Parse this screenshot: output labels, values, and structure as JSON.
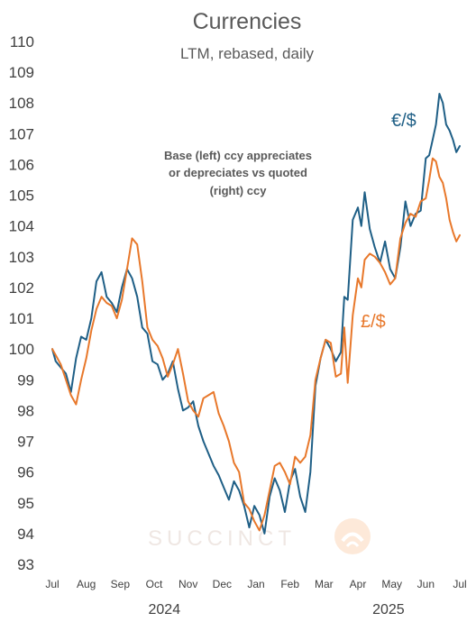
{
  "chart_data": {
    "type": "line",
    "title": "Currencies",
    "subtitle": "LTM, rebased, daily",
    "annotation": [
      "Base (left) ccy appreciates",
      "or depreciates vs quoted",
      "(right) ccy"
    ],
    "watermark": "SUCCINCT",
    "y_ticks": [
      93,
      94,
      95,
      96,
      97,
      98,
      99,
      100,
      101,
      102,
      103,
      104,
      105,
      106,
      107,
      108,
      109,
      110
    ],
    "ylim": [
      93,
      110
    ],
    "x_ticks": [
      "Jul",
      "Aug",
      "Sep",
      "Oct",
      "Nov",
      "Dec",
      "Jan",
      "Feb",
      "Mar",
      "Apr",
      "May",
      "Jun",
      "Jul"
    ],
    "xlim": [
      0,
      12
    ],
    "year_labels": [
      {
        "label": "2024",
        "x": 3.3
      },
      {
        "label": "2025",
        "x": 9.9
      }
    ],
    "grid": false,
    "legend": "inline labels",
    "series": [
      {
        "name": "€/$",
        "color": "#1f5f86",
        "x": [
          0,
          0.1,
          0.25,
          0.4,
          0.55,
          0.7,
          0.85,
          1.0,
          1.15,
          1.3,
          1.45,
          1.6,
          1.75,
          1.9,
          2.05,
          2.2,
          2.35,
          2.5,
          2.65,
          2.8,
          2.95,
          3.1,
          3.25,
          3.4,
          3.55,
          3.7,
          3.85,
          4.0,
          4.15,
          4.3,
          4.45,
          4.6,
          4.75,
          4.9,
          5.05,
          5.2,
          5.35,
          5.5,
          5.65,
          5.8,
          5.95,
          6.1,
          6.25,
          6.4,
          6.55,
          6.7,
          6.85,
          7.0,
          7.15,
          7.3,
          7.45,
          7.6,
          7.75,
          7.9,
          8.05,
          8.2,
          8.35,
          8.5,
          8.6,
          8.7,
          8.85,
          9.0,
          9.1,
          9.2,
          9.35,
          9.5,
          9.65,
          9.8,
          9.95,
          10.1,
          10.25,
          10.4,
          10.55,
          10.7,
          10.85,
          11.0,
          11.1,
          11.2,
          11.3,
          11.4,
          11.5,
          11.6,
          11.7,
          11.8,
          11.9,
          12.0
        ],
        "y": [
          100.0,
          99.6,
          99.4,
          99.2,
          98.6,
          99.7,
          100.4,
          100.3,
          101.0,
          102.2,
          102.5,
          101.7,
          101.5,
          101.2,
          102.0,
          102.6,
          102.3,
          101.7,
          100.7,
          100.5,
          99.6,
          99.5,
          99.0,
          99.2,
          99.6,
          98.7,
          98.0,
          98.1,
          98.3,
          97.5,
          97.0,
          96.6,
          96.2,
          95.9,
          95.5,
          95.1,
          95.7,
          95.4,
          94.9,
          94.2,
          94.9,
          94.6,
          94.0,
          95.2,
          95.8,
          95.4,
          94.7,
          95.7,
          96.1,
          95.2,
          94.7,
          96.0,
          98.8,
          99.7,
          100.3,
          100.0,
          99.6,
          99.9,
          101.7,
          101.6,
          104.2,
          104.6,
          104.0,
          105.1,
          103.9,
          103.3,
          102.8,
          103.5,
          102.6,
          102.3,
          103.3,
          104.8,
          104.0,
          104.4,
          104.5,
          106.2,
          106.3,
          106.8,
          107.3,
          108.3,
          108.0,
          107.3,
          107.1,
          106.8,
          106.4,
          106.6
        ]
      },
      {
        "name": "£/$",
        "color": "#e8782b",
        "x": [
          0,
          0.1,
          0.25,
          0.4,
          0.55,
          0.7,
          0.85,
          1.0,
          1.15,
          1.3,
          1.45,
          1.6,
          1.75,
          1.9,
          2.05,
          2.2,
          2.35,
          2.5,
          2.65,
          2.8,
          2.95,
          3.1,
          3.25,
          3.4,
          3.55,
          3.7,
          3.85,
          4.0,
          4.15,
          4.3,
          4.45,
          4.6,
          4.75,
          4.9,
          5.05,
          5.2,
          5.35,
          5.5,
          5.65,
          5.8,
          5.95,
          6.1,
          6.25,
          6.4,
          6.55,
          6.7,
          6.85,
          7.0,
          7.15,
          7.3,
          7.45,
          7.6,
          7.75,
          7.9,
          8.05,
          8.2,
          8.35,
          8.5,
          8.6,
          8.7,
          8.85,
          9.0,
          9.1,
          9.2,
          9.35,
          9.5,
          9.65,
          9.8,
          9.95,
          10.1,
          10.25,
          10.4,
          10.55,
          10.7,
          10.85,
          11.0,
          11.1,
          11.2,
          11.3,
          11.4,
          11.5,
          11.6,
          11.7,
          11.8,
          11.9,
          12.0
        ],
        "y": [
          100.0,
          99.8,
          99.5,
          99.0,
          98.5,
          98.2,
          99.0,
          99.7,
          100.6,
          101.3,
          101.7,
          101.5,
          101.4,
          101.0,
          101.6,
          102.6,
          103.6,
          103.4,
          102.2,
          100.7,
          100.3,
          100.1,
          99.7,
          99.1,
          99.5,
          100.0,
          99.2,
          98.3,
          98.0,
          97.8,
          98.4,
          98.5,
          98.6,
          97.9,
          97.5,
          97.0,
          96.3,
          96.0,
          95.0,
          94.8,
          94.4,
          94.1,
          94.6,
          95.4,
          96.2,
          96.3,
          96.0,
          95.6,
          96.5,
          96.3,
          96.5,
          97.2,
          99.0,
          99.7,
          100.3,
          100.2,
          99.1,
          99.2,
          100.7,
          98.9,
          101.1,
          102.3,
          102.0,
          102.9,
          103.1,
          103.0,
          102.8,
          102.5,
          102.1,
          102.3,
          103.6,
          104.1,
          104.4,
          104.3,
          104.8,
          104.9,
          105.5,
          106.2,
          106.1,
          105.6,
          105.4,
          104.9,
          104.2,
          103.8,
          103.5,
          103.7
        ]
      }
    ]
  }
}
